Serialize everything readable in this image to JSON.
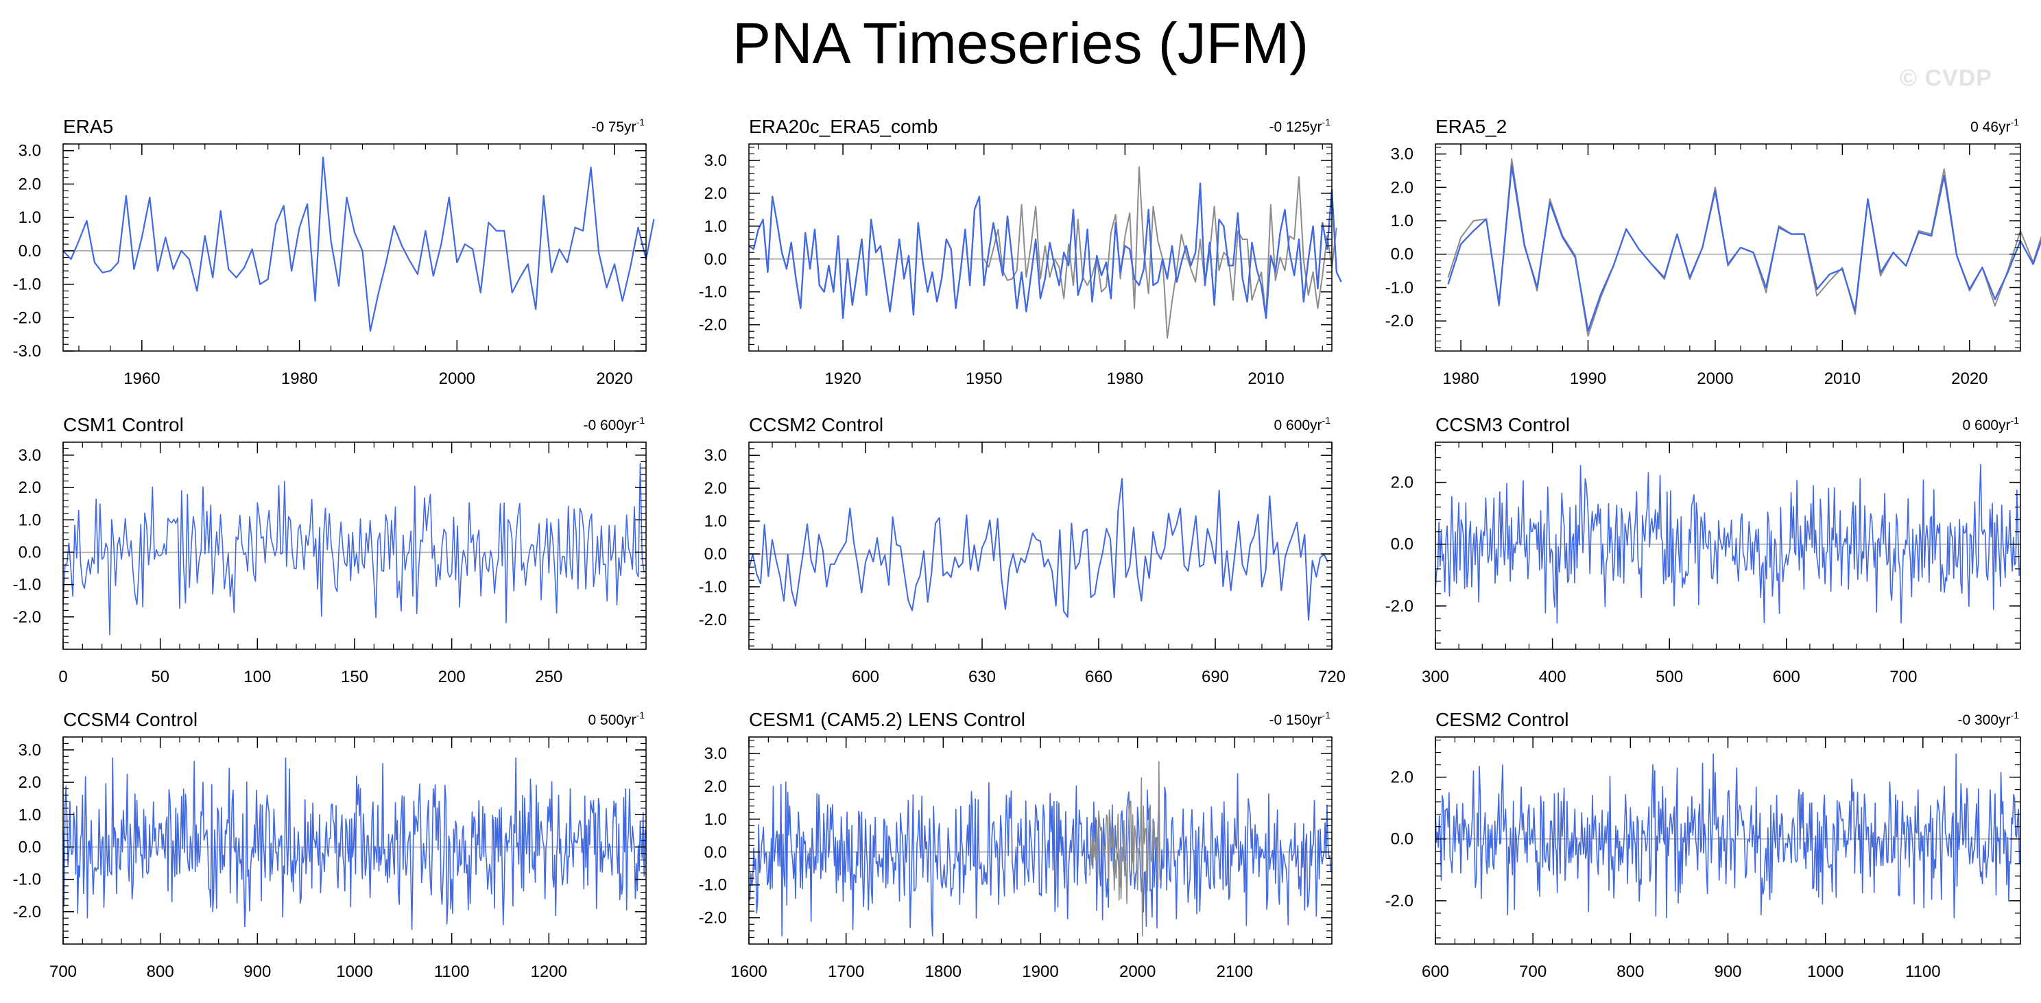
{
  "title": "PNA Timeseries (JFM)",
  "watermark": "© CVDP",
  "colors": {
    "series": "#4169e1",
    "obs_overlay": "#8c8c8c",
    "zero_line": "#a0a0a0",
    "frame": "#000000"
  },
  "chart_data": [
    {
      "type": "line",
      "title": "ERA5",
      "trend_value": "-0 75yr",
      "trend_exp": "-1",
      "xlim": [
        1950,
        2024
      ],
      "ylim": [
        -3.0,
        3.2
      ],
      "xticks": [
        1960,
        1980,
        2000,
        2020
      ],
      "yticks": [
        3.0,
        2.0,
        1.0,
        0.0,
        -1.0,
        -2.0,
        -3.0
      ],
      "ytick_labels": [
        "3.0",
        "2.0",
        "1.0",
        "0.0",
        "-1.0",
        "-2.0",
        "-3.0"
      ],
      "x_start": 1950,
      "series": [
        {
          "name": "ERA5",
          "values": [
            -0.0,
            -0.25,
            0.3,
            0.9,
            -0.35,
            -0.65,
            -0.6,
            -0.35,
            1.65,
            -0.55,
            0.4,
            1.6,
            -0.6,
            0.4,
            -0.55,
            0.0,
            -0.25,
            -1.2,
            0.45,
            -0.8,
            1.2,
            -0.55,
            -0.8,
            -0.5,
            0.05,
            -1.0,
            -0.85,
            0.8,
            1.35,
            -0.6,
            0.7,
            1.4,
            -1.5,
            2.8,
            0.3,
            -1.05,
            1.6,
            0.55,
            0.0,
            -2.4,
            -1.3,
            -0.35,
            0.75,
            0.15,
            -0.3,
            -0.7,
            0.6,
            -0.75,
            0.2,
            1.6,
            -0.35,
            0.2,
            0.05,
            -1.25,
            0.85,
            0.6,
            0.6,
            -1.25,
            -0.8,
            -0.4,
            -1.75,
            1.65,
            -0.65,
            0.05,
            -0.35,
            0.7,
            0.6,
            2.5,
            -0.05,
            -1.1,
            -0.4,
            -1.5,
            -0.5,
            0.7,
            -0.25,
            0.95
          ]
        }
      ]
    },
    {
      "type": "line",
      "title": "ERA20c_ERA5_comb",
      "trend_value": "-0 125yr",
      "trend_exp": "-1",
      "xlim": [
        1900,
        2024
      ],
      "ylim": [
        -2.8,
        3.5
      ],
      "xticks": [
        1920,
        1950,
        1980,
        2010
      ],
      "yticks": [
        3.0,
        2.0,
        1.0,
        0.0,
        -1.0,
        -2.0
      ],
      "ytick_labels": [
        "3.0",
        "2.0",
        "1.0",
        "0.0",
        "-1.0",
        "-2.0"
      ],
      "x_start": 1900,
      "series": [
        {
          "name": "ERA20c_ERA5_comb",
          "values": [
            0.4,
            0.3,
            0.9,
            1.2,
            -0.4,
            1.9,
            1.1,
            0.2,
            -0.3,
            0.5,
            -0.6,
            -1.5,
            0.8,
            -0.3,
            0.9,
            -0.8,
            -1.0,
            -0.2,
            -1.0,
            0.7,
            -1.8,
            0.0,
            -1.4,
            -0.4,
            0.6,
            -1.1,
            1.2,
            0.2,
            0.4,
            -0.6,
            -1.6,
            -0.5,
            0.6,
            -0.6,
            0.1,
            -1.7,
            1.1,
            -0.1,
            -1.0,
            -0.4,
            -1.3,
            -0.6,
            0.6,
            0.3,
            -1.5,
            -0.4,
            0.9,
            -0.8,
            1.5,
            1.9,
            -0.8,
            0.2,
            1.1,
            0.3,
            -0.5,
            1.3,
            0.0,
            -1.5,
            -0.4,
            -1.6,
            -0.5,
            0.6,
            -1.2,
            -0.6,
            0.5,
            -0.2,
            -0.8,
            0.2,
            -0.2,
            1.5,
            -1.1,
            -0.6,
            0.9,
            -1.3,
            0.1,
            -0.5,
            -0.1,
            -1.2,
            1.1,
            -0.4,
            0.4,
            0.3,
            -0.6,
            -0.8,
            -0.3,
            1.5,
            -0.8,
            -0.7,
            0.0,
            -0.6,
            0.4,
            -0.7,
            -0.1,
            0.4,
            -0.2,
            0.2,
            2.3,
            -0.8,
            0.5,
            -1.4,
            1.2,
            1.0,
            -0.2,
            -0.2,
            1.4,
            -0.6,
            -1.3,
            0.5,
            -0.3,
            -0.8,
            -1.8,
            0.1,
            -0.4,
            0.8,
            1.5,
            0.2,
            -0.5,
            0.6,
            -1.3,
            0.0,
            1.0,
            -0.9,
            1.1,
            0.3,
            2.1,
            -0.4,
            -0.7
          ]
        },
        {
          "name": "ERA5",
          "values": [
            0.0,
            -0.25,
            0.3,
            0.9,
            -0.35,
            -0.65,
            -0.6,
            -0.35,
            1.65,
            -0.55,
            0.4,
            1.6,
            -0.6,
            0.4,
            -0.55,
            0.0,
            -0.25,
            -1.2,
            0.45,
            -0.8,
            1.2,
            -0.55,
            -0.8,
            -0.5,
            0.05,
            -1.0,
            -0.85,
            0.8,
            1.35,
            -0.6,
            0.7,
            1.4,
            -1.5,
            2.8,
            0.3,
            -1.05,
            1.6,
            0.55,
            0.0,
            -2.4,
            -1.3,
            -0.35,
            0.75,
            0.15,
            -0.3,
            -0.7,
            0.6,
            -0.75,
            0.2,
            1.6,
            -0.35,
            0.2,
            0.05,
            -1.25,
            0.85,
            0.6,
            0.6,
            -1.25,
            -0.8,
            -0.4,
            -1.75,
            1.65,
            -0.65,
            0.05,
            -0.35,
            0.7,
            0.6,
            2.5,
            -0.05,
            -1.1,
            -0.4,
            -1.5,
            -0.5,
            0.7,
            -0.25,
            0.95
          ]
        }
      ],
      "overlay_start": 1950
    },
    {
      "type": "line",
      "title": "ERA5_2",
      "trend_value": "0 46yr",
      "trend_exp": "-1",
      "xlim": [
        1978,
        2024
      ],
      "ylim": [
        -2.9,
        3.3
      ],
      "xticks": [
        1980,
        1990,
        2000,
        2010,
        2020
      ],
      "yticks": [
        3.0,
        2.0,
        1.0,
        0.0,
        -1.0,
        -2.0
      ],
      "ytick_labels": [
        "3.0",
        "2.0",
        "1.0",
        "0.0",
        "-1.0",
        "-2.0"
      ],
      "x_start": 1979,
      "series": [
        {
          "name": "ERA5_2",
          "values": [
            -0.9,
            0.3,
            0.7,
            1.05,
            -1.5,
            2.65,
            0.25,
            -1.0,
            1.55,
            0.5,
            -0.1,
            -2.3,
            -1.2,
            -0.35,
            0.75,
            0.15,
            -0.3,
            -0.7,
            0.6,
            -0.7,
            0.2,
            1.9,
            -0.3,
            0.2,
            0.05,
            -1.0,
            0.8,
            0.6,
            0.6,
            -1.05,
            -0.6,
            -0.45,
            -1.7,
            1.65,
            -0.55,
            0.05,
            -0.35,
            0.65,
            0.55,
            2.35,
            -0.05,
            -1.05,
            -0.4,
            -1.35,
            -0.55,
            0.4,
            -0.3,
            0.8
          ]
        },
        {
          "name": "ERA5",
          "values": [
            -0.7,
            0.5,
            1.0,
            1.05,
            -1.55,
            2.85,
            0.3,
            -1.1,
            1.65,
            0.55,
            -0.05,
            -2.45,
            -1.3,
            -0.35,
            0.75,
            0.15,
            -0.3,
            -0.75,
            0.6,
            -0.75,
            0.2,
            2.0,
            -0.35,
            0.2,
            0.05,
            -1.15,
            0.85,
            0.6,
            0.6,
            -1.25,
            -0.8,
            -0.4,
            -1.8,
            1.65,
            -0.65,
            0.05,
            -0.35,
            0.7,
            0.6,
            2.55,
            -0.05,
            -1.1,
            -0.4,
            -1.55,
            -0.5,
            0.7,
            -0.25,
            0.95
          ]
        }
      ],
      "overlay_start": 1979
    },
    {
      "type": "line",
      "title": "CSM1 Control",
      "trend_value": "-0 600yr",
      "trend_exp": "-1",
      "xlim": [
        0,
        300
      ],
      "ylim": [
        -3.0,
        3.4
      ],
      "xticks": [
        0,
        50,
        100,
        150,
        200,
        250
      ],
      "yticks": [
        3.0,
        2.0,
        1.0,
        0.0,
        -1.0,
        -2.0
      ],
      "ytick_labels": [
        "3.0",
        "2.0",
        "1.0",
        "0.0",
        "-1.0",
        "-2.0"
      ],
      "synthetic": {
        "start": 0,
        "n": 300,
        "seed": 11,
        "amp": 0.9
      }
    },
    {
      "type": "line",
      "title": "CCSM2 Control",
      "trend_value": "0 600yr",
      "trend_exp": "-1",
      "xlim": [
        570,
        720
      ],
      "ylim": [
        -2.9,
        3.4
      ],
      "xticks": [
        600,
        630,
        660,
        690,
        720
      ],
      "yticks": [
        3.0,
        2.0,
        1.0,
        0.0,
        -1.0,
        -2.0
      ],
      "ytick_labels": [
        "3.0",
        "2.0",
        "1.0",
        "0.0",
        "-1.0",
        "-2.0"
      ],
      "synthetic": {
        "start": 570,
        "n": 150,
        "seed": 23,
        "amp": 0.85
      }
    },
    {
      "type": "line",
      "title": "CCSM3 Control",
      "trend_value": "0 600yr",
      "trend_exp": "-1",
      "xlim": [
        300,
        800
      ],
      "ylim": [
        -3.4,
        3.3
      ],
      "xticks": [
        300,
        400,
        500,
        600,
        700
      ],
      "yticks": [
        2.0,
        0.0,
        -2.0
      ],
      "ytick_labels": [
        "2.0",
        "0.0",
        "-2.0"
      ],
      "synthetic": {
        "start": 300,
        "n": 500,
        "seed": 37,
        "amp": 0.95
      }
    },
    {
      "type": "line",
      "title": "CCSM4 Control",
      "trend_value": "0 500yr",
      "trend_exp": "-1",
      "xlim": [
        700,
        1300
      ],
      "ylim": [
        -3.0,
        3.4
      ],
      "xticks": [
        700,
        800,
        900,
        1000,
        1100,
        1200
      ],
      "yticks": [
        3.0,
        2.0,
        1.0,
        0.0,
        -1.0,
        -2.0
      ],
      "ytick_labels": [
        "3.0",
        "2.0",
        "1.0",
        "0.0",
        "-1.0",
        "-2.0"
      ],
      "synthetic": {
        "start": 700,
        "n": 600,
        "seed": 41,
        "amp": 0.95
      }
    },
    {
      "type": "line",
      "title": "CESM1 (CAM5.2) LENS Control",
      "trend_value": "-0 150yr",
      "trend_exp": "-1",
      "xlim": [
        1600,
        2200
      ],
      "ylim": [
        -2.8,
        3.5
      ],
      "xticks": [
        1600,
        1700,
        1800,
        1900,
        2000,
        2100
      ],
      "yticks": [
        3.0,
        2.0,
        1.0,
        0.0,
        -1.0,
        -2.0
      ],
      "ytick_labels": [
        "3.0",
        "2.0",
        "1.0",
        "0.0",
        "-1.0",
        "-2.0"
      ],
      "synthetic": {
        "start": 1600,
        "n": 600,
        "seed": 53,
        "amp": 0.95
      },
      "overlay_synthetic": {
        "start": 1950,
        "n": 75,
        "seed": 77,
        "amp": 1.0
      }
    },
    {
      "type": "line",
      "title": "CESM2 Control",
      "trend_value": "-0 300yr",
      "trend_exp": "-1",
      "xlim": [
        600,
        1200
      ],
      "ylim": [
        -3.4,
        3.3
      ],
      "xticks": [
        600,
        700,
        800,
        900,
        1000,
        1100
      ],
      "yticks": [
        2.0,
        0.0,
        -2.0
      ],
      "ytick_labels": [
        "2.0",
        "0.0",
        "-2.0"
      ],
      "synthetic": {
        "start": 600,
        "n": 600,
        "seed": 61,
        "amp": 0.95
      }
    }
  ]
}
